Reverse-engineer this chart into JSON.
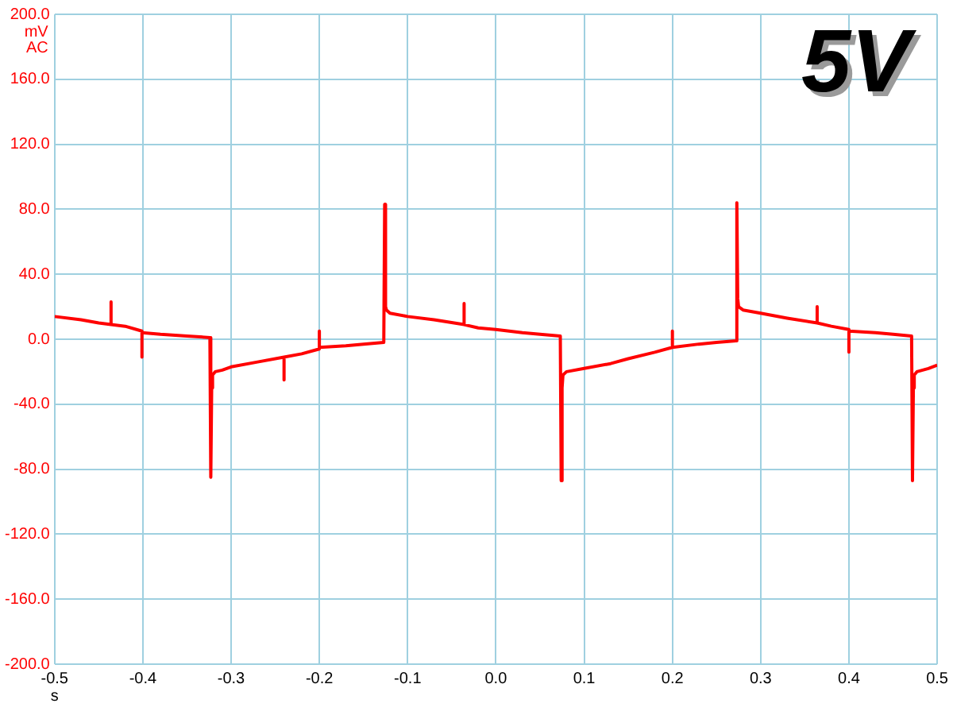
{
  "chart_data": {
    "type": "line",
    "xlabel": "s",
    "ylabel": "mV AC",
    "annotations": [
      "5V"
    ],
    "series": [
      {
        "color": "#ff0000",
        "x": [
          -0.5,
          -0.47,
          -0.45,
          -0.436,
          -0.436,
          -0.436,
          -0.42,
          -0.401,
          -0.401,
          -0.401,
          -0.38,
          -0.35,
          -0.324,
          -0.323,
          -0.322,
          -0.321,
          -0.318,
          -0.31,
          -0.3,
          -0.27,
          -0.24,
          -0.24,
          -0.24,
          -0.22,
          -0.2,
          -0.2,
          -0.2,
          -0.17,
          -0.15,
          -0.127,
          -0.126,
          -0.125,
          -0.124,
          -0.12,
          -0.1,
          -0.07,
          -0.036,
          -0.036,
          -0.036,
          -0.02,
          0.0,
          0.03,
          0.05,
          0.073,
          0.074,
          0.075,
          0.076,
          0.08,
          0.1,
          0.13,
          0.15,
          0.18,
          0.2,
          0.2,
          0.2,
          0.23,
          0.25,
          0.272,
          0.273,
          0.274,
          0.275,
          0.28,
          0.3,
          0.33,
          0.364,
          0.364,
          0.364,
          0.38,
          0.4,
          0.4,
          0.4,
          0.43,
          0.45,
          0.471,
          0.472,
          0.473,
          0.474,
          0.477,
          0.49,
          0.5
        ],
        "values": [
          14,
          12,
          10,
          9,
          23,
          9,
          8,
          5,
          -11,
          4,
          3,
          2,
          1,
          -85,
          -30,
          -22,
          -20,
          -19,
          -17,
          -14,
          -11,
          -25,
          -11,
          -9,
          -6,
          5,
          -5,
          -4,
          -3,
          -2,
          83,
          20,
          18,
          16,
          14,
          12,
          9,
          22,
          9,
          7,
          6,
          4,
          3,
          2,
          -87,
          -30,
          -22,
          -20,
          -18,
          -15,
          -12,
          -8,
          -5,
          5,
          -5,
          -3,
          -2,
          -1,
          84,
          25,
          20,
          18,
          16,
          13,
          10,
          20,
          10,
          8,
          6,
          -8,
          5,
          4,
          3,
          2,
          -87,
          -30,
          -22,
          -20,
          -18,
          -16
        ]
      }
    ],
    "xlim": [
      -0.5,
      0.5
    ],
    "xticks": [
      {
        "value": -0.5,
        "label": "-0.5"
      },
      {
        "value": -0.4,
        "label": "-0.4"
      },
      {
        "value": -0.3,
        "label": "-0.3"
      },
      {
        "value": -0.2,
        "label": "-0.2"
      },
      {
        "value": -0.1,
        "label": "-0.1"
      },
      {
        "value": 0,
        "label": "0.0"
      },
      {
        "value": 0.1,
        "label": "0.1"
      },
      {
        "value": 0.2,
        "label": "0.2"
      },
      {
        "value": 0.3,
        "label": "0.3"
      },
      {
        "value": 0.4,
        "label": "0.4"
      },
      {
        "value": 0.5,
        "label": "0.5"
      }
    ],
    "ylim": [
      -200,
      200
    ],
    "yticks": [
      {
        "value": -200,
        "label": "-200.0"
      },
      {
        "value": -160,
        "label": "-160.0"
      },
      {
        "value": -120,
        "label": "-120.0"
      },
      {
        "value": -80,
        "label": "-80.0"
      },
      {
        "value": -40,
        "label": "-40.0"
      },
      {
        "value": 0,
        "label": "0.0"
      },
      {
        "value": 40,
        "label": "40.0"
      },
      {
        "value": 80,
        "label": "80.0"
      },
      {
        "value": 120,
        "label": "120.0"
      },
      {
        "value": 160,
        "label": "160.0"
      },
      {
        "value": 200,
        "label": "200.0"
      }
    ],
    "grid": true,
    "marker": "none",
    "line_style": "solid"
  }
}
